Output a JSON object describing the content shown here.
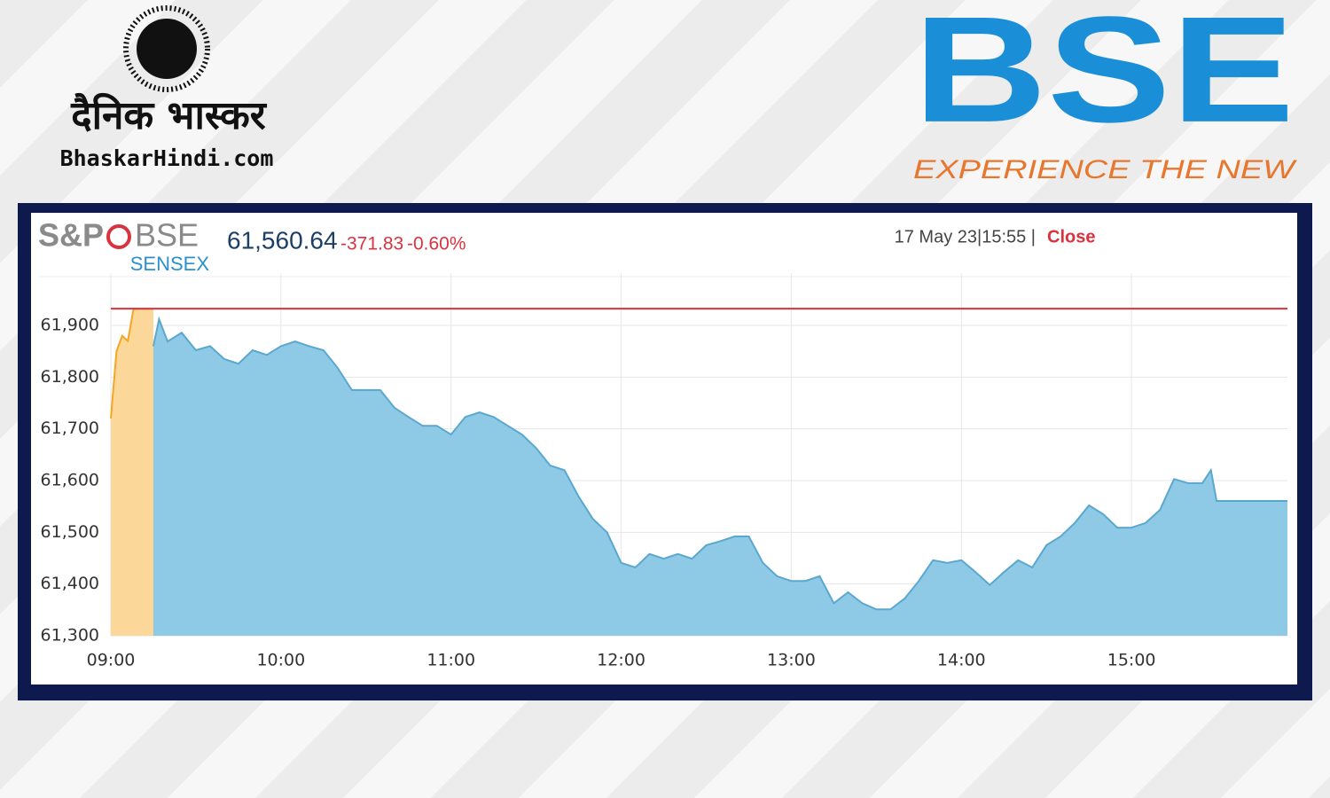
{
  "branding": {
    "publisher": "दैनिक भास्कर",
    "publisher_site": "BhaskarHindi.com",
    "exchange": "BSE",
    "exchange_tagline": "EXPERIENCE THE NEW"
  },
  "quote": {
    "logo_left": "S&P",
    "logo_right": "BSE",
    "index": "SENSEX",
    "last": "61,560.64",
    "change": "-371.83",
    "change_pct": "-0.60%",
    "datetime": "17 May 23|15:55 |",
    "status": "Close"
  },
  "chart_data": {
    "type": "area",
    "xlim": [
      "09:00",
      "15:55"
    ],
    "xticks": [
      "09:00",
      "10:00",
      "11:00",
      "12:00",
      "13:00",
      "14:00",
      "15:00"
    ],
    "ylim": [
      61300,
      62000
    ],
    "yticks": [
      {
        "value": 61300,
        "label": "61,300"
      },
      {
        "value": 61400,
        "label": "61,400"
      },
      {
        "value": 61500,
        "label": "61,500"
      },
      {
        "value": 61600,
        "label": "61,600"
      },
      {
        "value": 61700,
        "label": "61,700"
      },
      {
        "value": 61800,
        "label": "61,800"
      },
      {
        "value": 61900,
        "label": "61,900"
      }
    ],
    "grid": true,
    "reference_line": {
      "value": 61932.47,
      "color": "#d9333f"
    },
    "series": [
      {
        "color": "#fbd89a",
        "line_color": "#f5a623",
        "x": [
          "09:00",
          "09:02",
          "09:04",
          "09:06",
          "09:08",
          "09:15"
        ],
        "values": [
          61720,
          61850,
          61880,
          61870,
          61932,
          61932
        ]
      },
      {
        "color": "#8ecae6",
        "line_color": "#5aa7cf",
        "x": [
          "09:15",
          "09:17",
          "09:20",
          "09:25",
          "09:30",
          "09:35",
          "09:40",
          "09:45",
          "09:50",
          "09:55",
          "10:00",
          "10:05",
          "10:10",
          "10:15",
          "10:20",
          "10:25",
          "10:30",
          "10:35",
          "10:40",
          "10:45",
          "10:50",
          "10:55",
          "11:00",
          "11:05",
          "11:10",
          "11:15",
          "11:20",
          "11:25",
          "11:30",
          "11:35",
          "11:40",
          "11:45",
          "11:50",
          "11:55",
          "12:00",
          "12:05",
          "12:10",
          "12:15",
          "12:20",
          "12:25",
          "12:30",
          "12:35",
          "12:40",
          "12:45",
          "12:50",
          "12:55",
          "13:00",
          "13:05",
          "13:10",
          "13:15",
          "13:20",
          "13:25",
          "13:30",
          "13:35",
          "13:40",
          "13:45",
          "13:50",
          "13:55",
          "14:00",
          "14:05",
          "14:10",
          "14:15",
          "14:20",
          "14:25",
          "14:30",
          "14:35",
          "14:40",
          "14:45",
          "14:50",
          "14:55",
          "15:00",
          "15:05",
          "15:10",
          "15:15",
          "15:20",
          "15:25",
          "15:28",
          "15:30",
          "15:55"
        ],
        "values": [
          61860,
          61912,
          61869,
          61886,
          61852,
          61860,
          61835,
          61826,
          61852,
          61843,
          61860,
          61869,
          61860,
          61852,
          61818,
          61775,
          61775,
          61775,
          61741,
          61723,
          61706,
          61706,
          61689,
          61723,
          61732,
          61723,
          61706,
          61689,
          61663,
          61629,
          61620,
          61569,
          61526,
          61500,
          61441,
          61432,
          61458,
          61449,
          61458,
          61449,
          61475,
          61483,
          61492,
          61492,
          61441,
          61415,
          61406,
          61406,
          61415,
          61363,
          61384,
          61363,
          61351,
          61351,
          61372,
          61406,
          61446,
          61441,
          61446,
          61423,
          61398,
          61423,
          61446,
          61432,
          61475,
          61492,
          61518,
          61552,
          61535,
          61509,
          61509,
          61518,
          61543,
          61603,
          61595,
          61595,
          61620,
          61560.64,
          61560.64
        ]
      }
    ]
  }
}
